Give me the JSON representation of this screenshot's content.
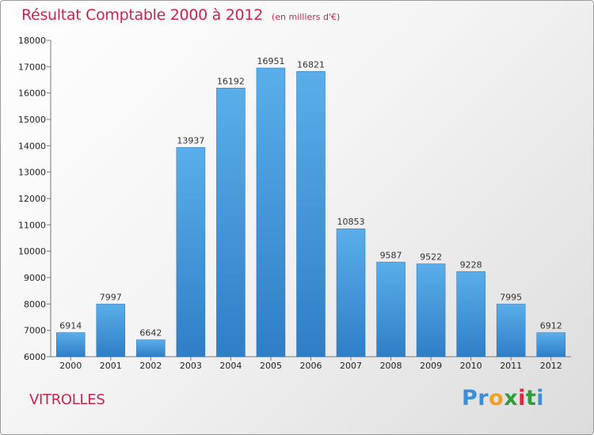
{
  "chart_data": {
    "type": "bar",
    "title": "Résultat Comptable 2000 à 2012",
    "subtitle": "(en milliers d'€)",
    "categories": [
      "2000",
      "2001",
      "2002",
      "2003",
      "2004",
      "2005",
      "2006",
      "2007",
      "2008",
      "2009",
      "2010",
      "2011",
      "2012"
    ],
    "values": [
      6914,
      7997,
      6642,
      13937,
      16192,
      16951,
      16821,
      10853,
      9587,
      9522,
      9228,
      7995,
      6912
    ],
    "ylim": [
      6000,
      18000
    ],
    "yticks": [
      "6000",
      "7000",
      "8000",
      "9000",
      "10000",
      "11000",
      "12000",
      "13000",
      "14000",
      "15000",
      "16000",
      "17000",
      "18000"
    ],
    "xlabel": "",
    "ylabel": "",
    "bar_color_top": "#5aaeea",
    "bar_color_bottom": "#2f7ec7"
  },
  "location": "VITROLLES",
  "brand": {
    "letters": [
      "P",
      "r",
      "o",
      "x",
      "i",
      "t",
      "i"
    ],
    "colors": [
      "#3a8fd8",
      "#3a8fd8",
      "#f0a020",
      "#2e9e3c",
      "#d8283c",
      "#2e9e3c",
      "#3a8fd8"
    ]
  },
  "colors": {
    "accent": "#c8244f"
  }
}
